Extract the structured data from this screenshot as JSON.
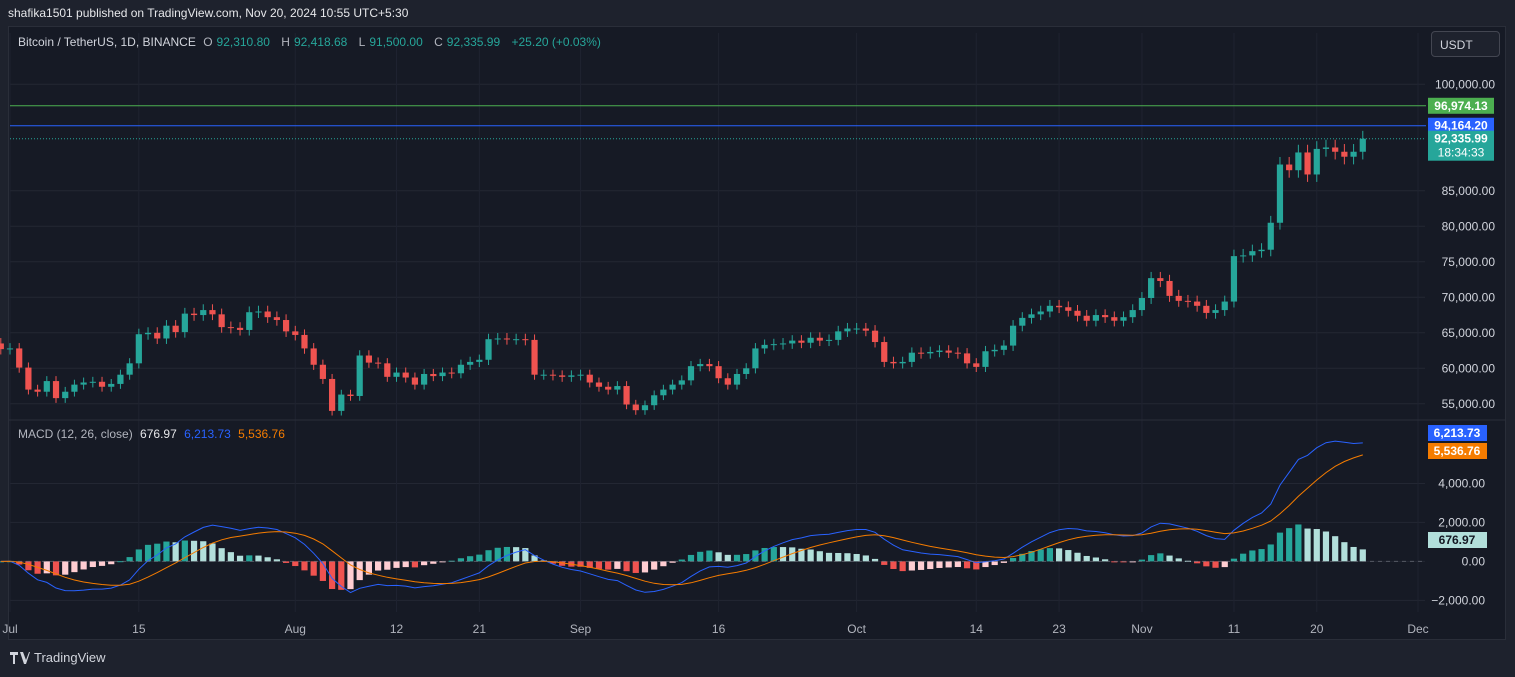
{
  "header": {
    "published": "shafika1501 published on TradingView.com, Nov 20, 2024 10:55 UTC+5:30"
  },
  "footer": {
    "brand": "TradingView"
  },
  "legend": {
    "symbol": "Bitcoin / TetherUS, 1D, BINANCE",
    "o_label": "O",
    "o_value": "92,310.80",
    "h_label": "H",
    "h_value": "92,418.68",
    "l_label": "L",
    "l_value": "91,500.00",
    "c_label": "C",
    "c_value": "92,335.99",
    "change": "+25.20 (+0.03%)"
  },
  "currency_button": "USDT",
  "macd_legend": {
    "title": "MACD (12, 26, close)",
    "hist": "676.97",
    "macd": "6,213.73",
    "signal": "5,536.76"
  },
  "colors": {
    "up": "#26a69a",
    "down": "#ef5350",
    "macd": "#2962ff",
    "signal": "#f57c00",
    "green_line": "#4caf50",
    "blue_line": "#2962ff"
  },
  "chart_data": [
    {
      "type": "candlestick",
      "ylim": [
        53000,
        103000
      ],
      "y_ticks": [
        "100,000.00",
        "85,000.00",
        "80,000.00",
        "75,000.00",
        "70,000.00",
        "65,000.00",
        "60,000.00",
        "55,000.00"
      ],
      "x_ticks": [
        "Jul",
        "15",
        "Aug",
        "12",
        "21",
        "Sep",
        "16",
        "Oct",
        "14",
        "23",
        "Nov",
        "11",
        "20",
        "Dec"
      ],
      "horizontal_lines": [
        {
          "label": "96,974.13",
          "value": 96974.13,
          "color": "#4caf50"
        },
        {
          "label": "94,164.20",
          "value": 94164.2,
          "color": "#2962ff"
        }
      ],
      "last_price": {
        "label": "92,335.99",
        "countdown": "18:34:33",
        "value": 92335.99
      },
      "start": "2024-06-30",
      "closes": [
        62700,
        62800,
        60100,
        57000,
        56700,
        58200,
        55800,
        56700,
        57700,
        58000,
        58100,
        57400,
        57800,
        59100,
        60700,
        64800,
        65000,
        64200,
        66000,
        65100,
        67700,
        67500,
        68200,
        67600,
        65800,
        65700,
        65400,
        67900,
        68000,
        67200,
        66800,
        65200,
        64700,
        62800,
        60500,
        58500,
        54000,
        56300,
        56100,
        61800,
        60800,
        60700,
        58800,
        59400,
        58700,
        57700,
        59200,
        58900,
        59400,
        59300,
        60500,
        60900,
        61200,
        64100,
        64200,
        64100,
        64100,
        64000,
        59100,
        59100,
        59000,
        58800,
        59000,
        59100,
        58000,
        57400,
        57000,
        57500,
        54900,
        54100,
        54800,
        56200,
        57000,
        57700,
        58300,
        60300,
        60600,
        60300,
        58600,
        57700,
        59200,
        60000,
        62800,
        63300,
        63400,
        63500,
        63900,
        63600,
        64300,
        63900,
        64000,
        65200,
        65600,
        65600,
        65300,
        63700,
        60900,
        60700,
        60900,
        62200,
        62100,
        62300,
        62500,
        62200,
        62100,
        60700,
        60200,
        62400,
        62600,
        63200,
        66000,
        67100,
        67600,
        68000,
        68800,
        68600,
        68100,
        67400,
        66700,
        67500,
        67200,
        66700,
        67200,
        68200,
        69900,
        72700,
        72300,
        70200,
        69500,
        69400,
        68800,
        67800,
        68200,
        69400,
        75800,
        75900,
        76500,
        76700,
        80500,
        88700,
        87900,
        90400,
        87300,
        90900,
        91100,
        90500,
        89800,
        90500,
        92336
      ]
    },
    {
      "type": "macd",
      "title": "MACD (12, 26, close)",
      "ylim": [
        -2600,
        7000
      ],
      "y_ticks": [
        "4,000.00",
        "2,000.00",
        "0.00",
        "−2,000.00"
      ]
    }
  ]
}
